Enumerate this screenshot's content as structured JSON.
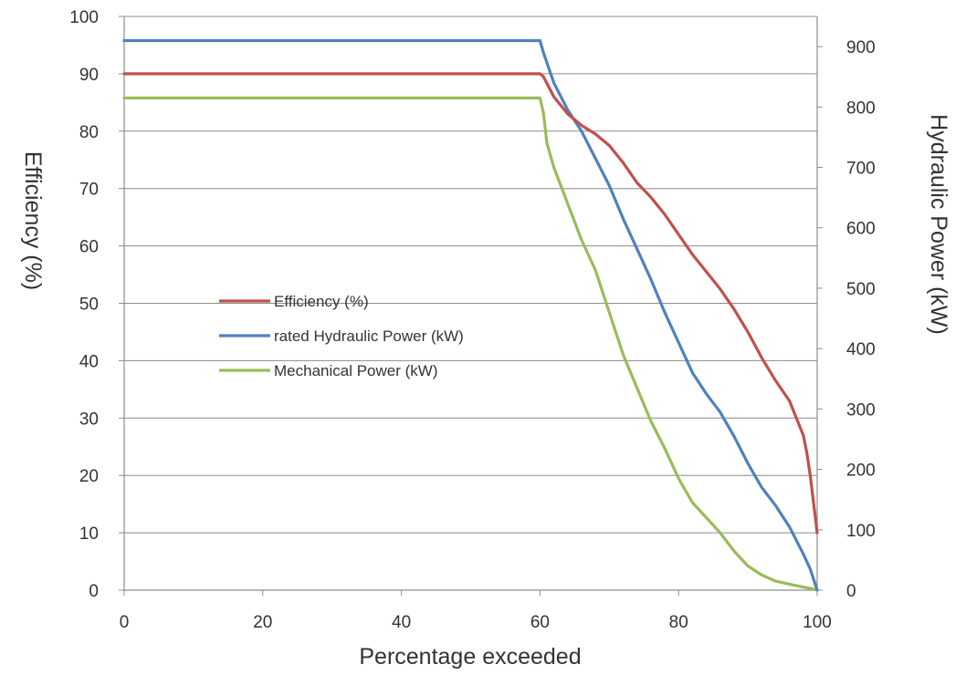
{
  "chart_data": {
    "type": "line",
    "title": "",
    "xlabel": "Percentage exceeded",
    "ylabel": "Efficiency (%)",
    "y2label": "Hydraulic Power (kW)",
    "xlim": [
      0,
      100
    ],
    "ylim": [
      0,
      100
    ],
    "y2lim": [
      0,
      950
    ],
    "xticks": [
      0,
      20,
      40,
      60,
      80,
      100
    ],
    "yticks": [
      0,
      10,
      20,
      30,
      40,
      50,
      60,
      70,
      80,
      90,
      100
    ],
    "y2ticks": [
      0,
      100,
      200,
      300,
      400,
      500,
      600,
      700,
      800,
      900
    ],
    "grid": "horizontal",
    "legend_position": "center-left",
    "series": [
      {
        "name": "Efficiency (%)",
        "axis": "left",
        "color": "#c0504d",
        "x": [
          0,
          60,
          60.5,
          62,
          64,
          66,
          68,
          70,
          72,
          74,
          76,
          78,
          80,
          82,
          84,
          86,
          88,
          90,
          92,
          94,
          96,
          97,
          98,
          98.5,
          99,
          99.5,
          100
        ],
        "y": [
          90,
          90,
          89.5,
          86,
          83,
          81,
          79.5,
          77.5,
          74.5,
          71,
          68.5,
          65.5,
          62,
          58.5,
          55.5,
          52.5,
          49,
          45,
          40.5,
          36.5,
          33,
          30,
          27,
          24,
          20,
          15,
          10
        ]
      },
      {
        "name": "rated Hydraulic Power (kW)",
        "axis": "right",
        "color": "#4f81bd",
        "x": [
          0,
          60,
          60.5,
          62,
          64,
          66,
          68,
          70,
          72,
          74,
          76,
          78,
          80,
          82,
          84,
          86,
          88,
          90,
          92,
          94,
          96,
          98,
          99,
          100
        ],
        "y": [
          910,
          910,
          890,
          840,
          795,
          760,
          715,
          670,
          615,
          565,
          515,
          460,
          410,
          360,
          325,
          295,
          255,
          210,
          170,
          140,
          105,
          60,
          35,
          0
        ]
      },
      {
        "name": "Mechanical Power (kW)",
        "axis": "right",
        "color": "#9bbb59",
        "x": [
          0,
          60,
          60.5,
          61,
          62,
          64,
          66,
          68,
          70,
          72,
          74,
          76,
          78,
          80,
          82,
          84,
          86,
          88,
          90,
          92,
          94,
          96,
          98,
          99,
          100
        ],
        "y": [
          815,
          815,
          790,
          740,
          700,
          640,
          580,
          530,
          460,
          390,
          335,
          280,
          235,
          185,
          145,
          120,
          95,
          65,
          40,
          25,
          15,
          10,
          5,
          3,
          0
        ]
      }
    ]
  }
}
